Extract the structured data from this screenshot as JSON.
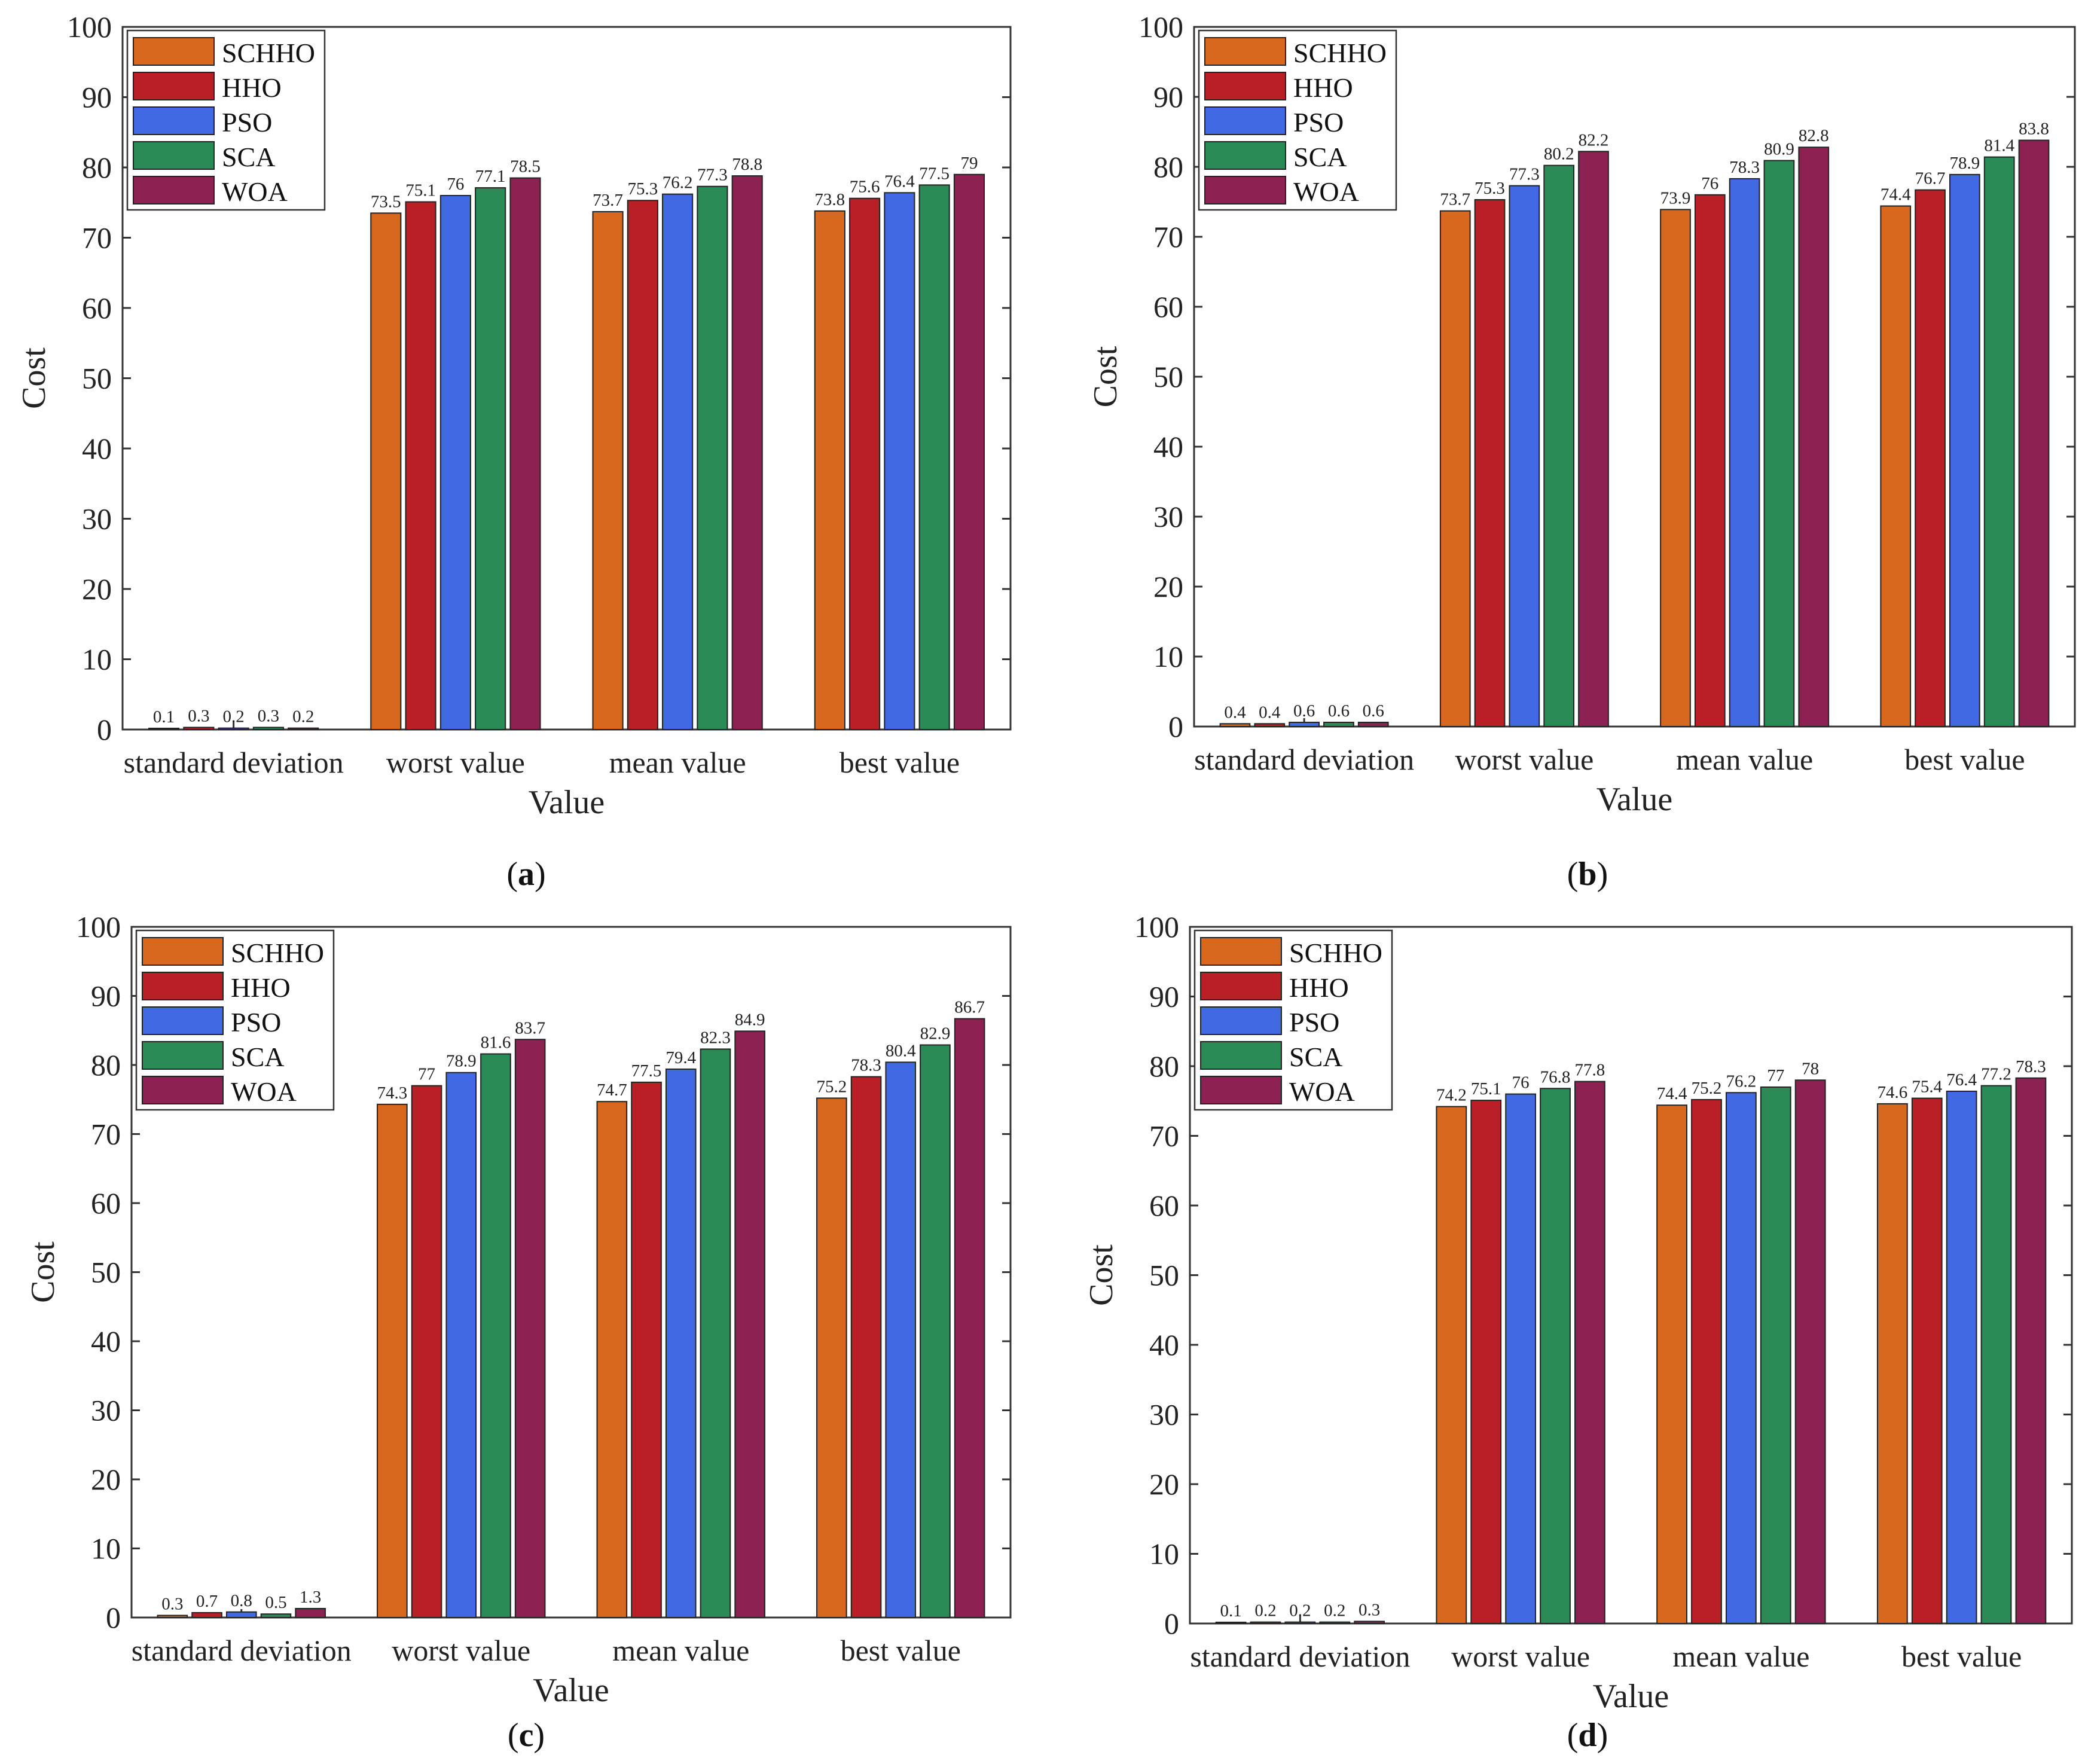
{
  "figure": {
    "series_colors": [
      "#d9681f",
      "#b92025",
      "#4169e1",
      "#2a8b57",
      "#8b2251"
    ],
    "panel_labels": [
      "a",
      "b",
      "c",
      "d"
    ]
  },
  "chart_data": [
    {
      "type": "bar",
      "panel": "a",
      "xlabel": "Value",
      "ylabel": "Cost",
      "ylim": [
        0,
        100
      ],
      "yticks": [
        "0",
        "10",
        "20",
        "30",
        "40",
        "50",
        "60",
        "70",
        "80",
        "90",
        "100"
      ],
      "categories": [
        "standard deviation",
        "worst value",
        "mean value",
        "best value"
      ],
      "legend_position": "top-left",
      "series": [
        {
          "name": "SCHHO",
          "values": [
            0.1,
            73.5,
            73.7,
            73.8
          ],
          "labels": [
            "0.1",
            "73.5",
            "73.7",
            "73.8"
          ]
        },
        {
          "name": "HHO",
          "values": [
            0.3,
            75.1,
            75.3,
            75.6
          ],
          "labels": [
            "0.3",
            "75.1",
            "75.3",
            "75.6"
          ]
        },
        {
          "name": "PSO",
          "values": [
            0.2,
            76,
            76.2,
            76.4
          ],
          "labels": [
            "0.2",
            "76",
            "76.2",
            "76.4"
          ]
        },
        {
          "name": "SCA",
          "values": [
            0.3,
            77.1,
            77.3,
            77.5
          ],
          "labels": [
            "0.3",
            "77.1",
            "77.3",
            "77.5"
          ]
        },
        {
          "name": "WOA",
          "values": [
            0.2,
            78.5,
            78.8,
            79
          ],
          "labels": [
            "0.2",
            "78.5",
            "78.8",
            "79"
          ]
        }
      ]
    },
    {
      "type": "bar",
      "panel": "b",
      "xlabel": "Value",
      "ylabel": "Cost",
      "ylim": [
        0,
        100
      ],
      "yticks": [
        "0",
        "10",
        "20",
        "30",
        "40",
        "50",
        "60",
        "70",
        "80",
        "90",
        "100"
      ],
      "categories": [
        "standard deviation",
        "worst value",
        "mean value",
        "best value"
      ],
      "legend_position": "top-left",
      "series": [
        {
          "name": "SCHHO",
          "values": [
            0.4,
            73.7,
            73.9,
            74.4
          ],
          "labels": [
            "0.4",
            "73.7",
            "73.9",
            "74.4"
          ]
        },
        {
          "name": "HHO",
          "values": [
            0.4,
            75.3,
            76,
            76.7
          ],
          "labels": [
            "0.4",
            "75.3",
            "76",
            "76.7"
          ]
        },
        {
          "name": "PSO",
          "values": [
            0.6,
            77.3,
            78.3,
            78.9
          ],
          "labels": [
            "0.6",
            "77.3",
            "78.3",
            "78.9"
          ]
        },
        {
          "name": "SCA",
          "values": [
            0.6,
            80.2,
            80.9,
            81.4
          ],
          "labels": [
            "0.6",
            "80.2",
            "80.9",
            "81.4"
          ]
        },
        {
          "name": "WOA",
          "values": [
            0.6,
            82.2,
            82.8,
            83.8
          ],
          "labels": [
            "0.6",
            "82.2",
            "82.8",
            "83.8"
          ]
        }
      ]
    },
    {
      "type": "bar",
      "panel": "c",
      "xlabel": "Value",
      "ylabel": "Cost",
      "ylim": [
        0,
        100
      ],
      "yticks": [
        "0",
        "10",
        "20",
        "30",
        "40",
        "50",
        "60",
        "70",
        "80",
        "90",
        "100"
      ],
      "categories": [
        "standard deviation",
        "worst value",
        "mean value",
        "best value"
      ],
      "legend_position": "top-left",
      "series": [
        {
          "name": "SCHHO",
          "values": [
            0.3,
            74.3,
            74.7,
            75.2
          ],
          "labels": [
            "0.3",
            "74.3",
            "74.7",
            "75.2"
          ]
        },
        {
          "name": "HHO",
          "values": [
            0.7,
            77,
            77.5,
            78.3
          ],
          "labels": [
            "0.7",
            "77",
            "77.5",
            "78.3"
          ]
        },
        {
          "name": "PSO",
          "values": [
            0.8,
            78.9,
            79.4,
            80.4
          ],
          "labels": [
            "0.8",
            "78.9",
            "79.4",
            "80.4"
          ]
        },
        {
          "name": "SCA",
          "values": [
            0.5,
            81.6,
            82.3,
            82.9
          ],
          "labels": [
            "0.5",
            "81.6",
            "82.3",
            "82.9"
          ]
        },
        {
          "name": "WOA",
          "values": [
            1.3,
            83.7,
            84.9,
            86.7
          ],
          "labels": [
            "1.3",
            "83.7",
            "84.9",
            "86.7"
          ]
        }
      ]
    },
    {
      "type": "bar",
      "panel": "d",
      "xlabel": "Value",
      "ylabel": "Cost",
      "ylim": [
        0,
        100
      ],
      "yticks": [
        "0",
        "10",
        "20",
        "30",
        "40",
        "50",
        "60",
        "70",
        "80",
        "90",
        "100"
      ],
      "categories": [
        "standard deviation",
        "worst value",
        "mean value",
        "best value"
      ],
      "legend_position": "top-left",
      "series": [
        {
          "name": "SCHHO",
          "values": [
            0.1,
            74.2,
            74.4,
            74.6
          ],
          "labels": [
            "0.1",
            "74.2",
            "74.4",
            "74.6"
          ]
        },
        {
          "name": "HHO",
          "values": [
            0.2,
            75.1,
            75.2,
            75.4
          ],
          "labels": [
            "0.2",
            "75.1",
            "75.2",
            "75.4"
          ]
        },
        {
          "name": "PSO",
          "values": [
            0.2,
            76,
            76.2,
            76.4
          ],
          "labels": [
            "0.2",
            "76",
            "76.2",
            "76.4"
          ]
        },
        {
          "name": "SCA",
          "values": [
            0.2,
            76.8,
            77,
            77.2
          ],
          "labels": [
            "0.2",
            "76.8",
            "77",
            "77.2"
          ]
        },
        {
          "name": "WOA",
          "values": [
            0.3,
            77.8,
            78,
            78.3
          ],
          "labels": [
            "0.3",
            "77.8",
            "78",
            "78.3"
          ]
        }
      ]
    }
  ]
}
